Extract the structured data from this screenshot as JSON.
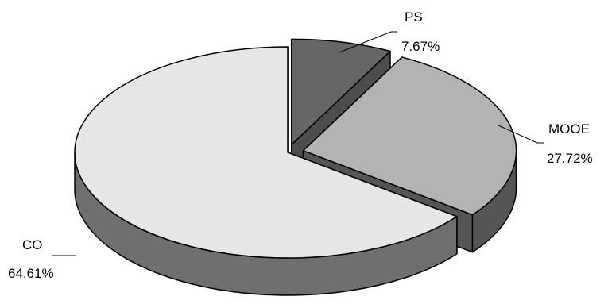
{
  "chart_data": {
    "type": "pie",
    "style": "3d-exploded",
    "title": "",
    "slices": [
      {
        "label": "PS",
        "value": 7.67,
        "value_label": "7.67%",
        "top_color": "#666666",
        "side_color": "#4d4d4d",
        "exploded": true
      },
      {
        "label": "MOOE",
        "value": 27.72,
        "value_label": "27.72%",
        "top_color": "#b3b3b3",
        "side_color": "#555555",
        "exploded": true
      },
      {
        "label": "CO",
        "value": 64.61,
        "value_label": "64.61%",
        "top_color": "#e6e6e6",
        "side_color": "#6f6f6f",
        "exploded": false
      }
    ],
    "legend": "none"
  }
}
